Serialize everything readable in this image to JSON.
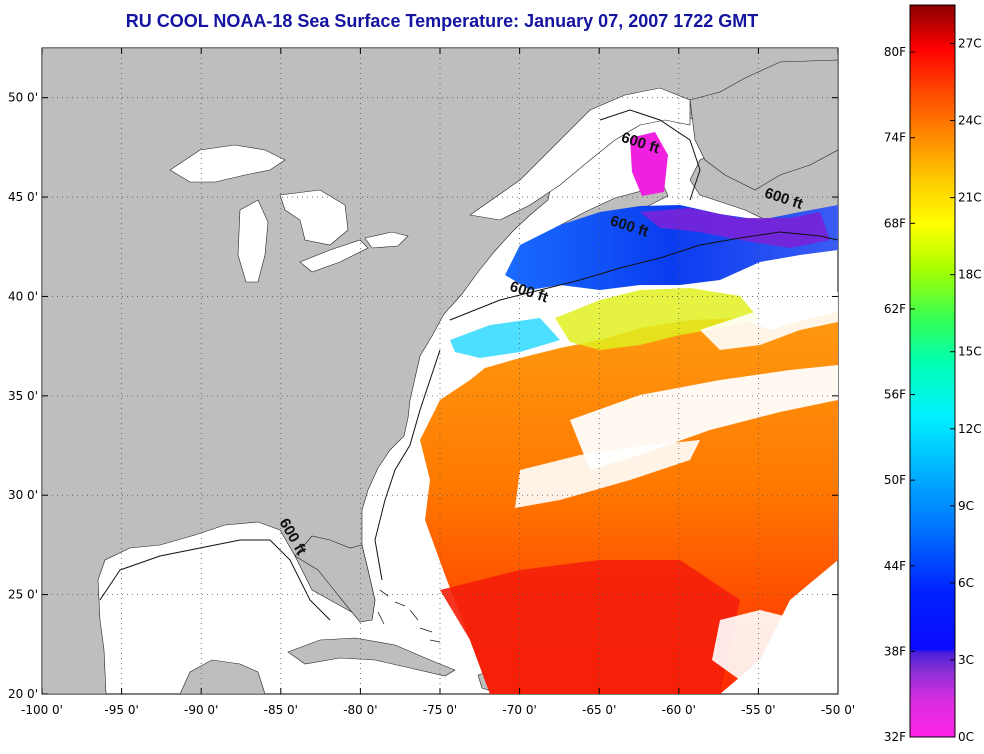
{
  "title": "RU COOL  NOAA-18  Sea Surface Temperature:  January 07, 2007 1722 GMT",
  "map": {
    "lon_range": [
      -100,
      -50
    ],
    "lat_range": [
      20,
      52.5
    ],
    "lon_ticks": [
      "-100 0'",
      "-95 0'",
      "-90 0'",
      "-85 0'",
      "-80 0'",
      "-75 0'",
      "-70 0'",
      "-65 0'",
      "-60 0'",
      "-55 0'",
      "-50 0'"
    ],
    "lat_ticks": [
      "20 0'",
      "25 0'",
      "30 0'",
      "35 0'",
      "40 0'",
      "45 0'",
      "50 0'"
    ],
    "gridlines": true,
    "colors": {
      "land": "#bebebe",
      "ocean_no_data": "#ffffff",
      "grid": "#555555"
    },
    "contour_labels": [
      {
        "text": "600 ft",
        "lon": -62.5,
        "lat": 47.5
      },
      {
        "text": "600 ft",
        "lon": -53.5,
        "lat": 44.7
      },
      {
        "text": "600 ft",
        "lon": -63.2,
        "lat": 43.3
      },
      {
        "text": "600 ft",
        "lon": -69.5,
        "lat": 40.0
      },
      {
        "text": "600 ft",
        "lon": -84.5,
        "lat": 27.8
      }
    ]
  },
  "colorbar": {
    "fahrenheit_labels": [
      "32F",
      "38F",
      "44F",
      "50F",
      "56F",
      "62F",
      "68F",
      "74F",
      "80F"
    ],
    "celsius_labels": [
      "0C",
      "3C",
      "6C",
      "9C",
      "12C",
      "15C",
      "18C",
      "21C",
      "24C",
      "27C"
    ],
    "range_celsius": [
      0,
      28.5
    ]
  }
}
